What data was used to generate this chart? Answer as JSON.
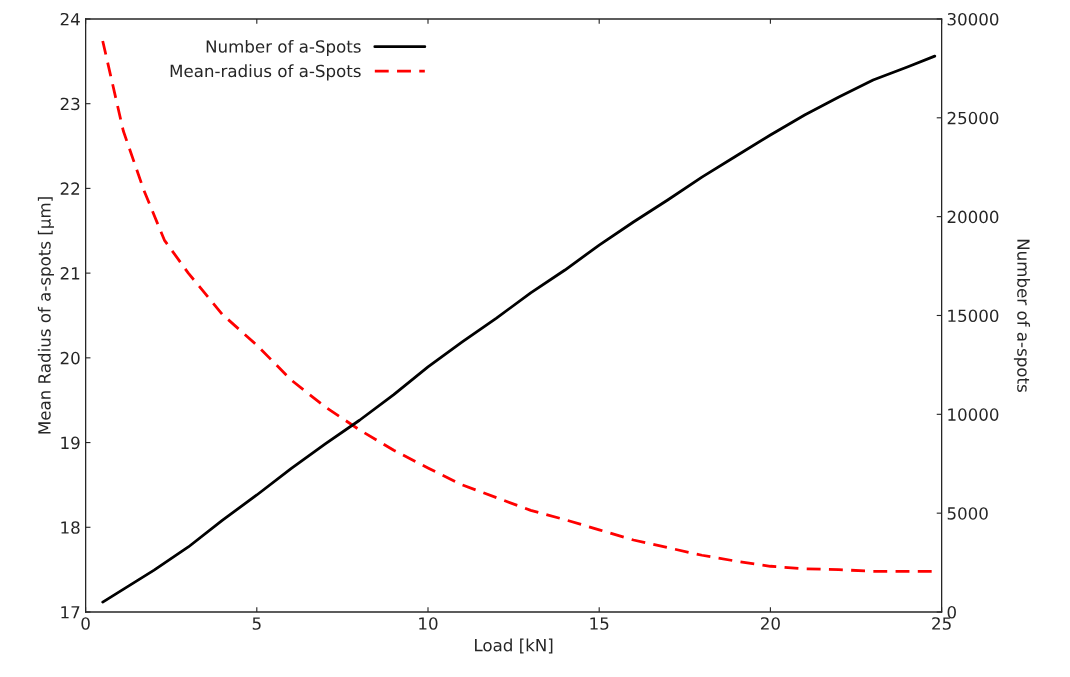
{
  "chart_data": {
    "type": "line",
    "xlabel": "Load [kN]",
    "ylabel": "Mean Radius of a-spots [µm]",
    "y2label": "Number of a-spots",
    "xlim": [
      0,
      25
    ],
    "xticks": [
      0,
      5,
      10,
      15,
      20,
      25
    ],
    "ylim": [
      17,
      24
    ],
    "yticks": [
      17,
      18,
      19,
      20,
      21,
      22,
      23,
      24
    ],
    "y2lim": [
      0,
      30000
    ],
    "y2ticks": [
      0,
      5000,
      10000,
      15000,
      20000,
      25000,
      30000
    ],
    "legend": "top left",
    "grid": false,
    "series": [
      {
        "name": "Number of a-Spots",
        "color": "#000000",
        "axis": "y2",
        "line_style": "solid",
        "x": [
          0.5,
          2,
          3,
          4,
          5,
          6,
          7,
          8,
          9,
          10,
          11,
          12,
          13,
          14,
          15,
          16,
          17,
          18,
          19,
          20,
          21,
          22,
          23,
          24,
          24.8
        ],
        "values": [
          500,
          2120,
          3290,
          4650,
          5920,
          7250,
          8500,
          9700,
          11000,
          12400,
          13660,
          14870,
          16140,
          17300,
          18560,
          19730,
          20840,
          22000,
          23070,
          24130,
          25140,
          26050,
          26910,
          27570,
          28120
        ]
      },
      {
        "name": "Mean-radius of a-Spots",
        "color": "#ff0000",
        "axis": "y",
        "line_style": "dashed",
        "x": [
          0.5,
          1.1,
          1.7,
          2.3,
          3,
          4,
          5,
          6,
          7,
          8,
          9,
          10,
          11,
          12,
          13,
          14,
          15,
          16,
          17,
          18,
          19,
          20,
          21,
          22,
          23,
          24,
          24.8
        ],
        "values": [
          23.74,
          22.68,
          21.98,
          21.39,
          21.0,
          20.51,
          20.15,
          19.74,
          19.42,
          19.15,
          18.91,
          18.7,
          18.5,
          18.35,
          18.2,
          18.09,
          17.97,
          17.85,
          17.76,
          17.67,
          17.6,
          17.54,
          17.51,
          17.5,
          17.48,
          17.48,
          17.48
        ]
      }
    ]
  }
}
